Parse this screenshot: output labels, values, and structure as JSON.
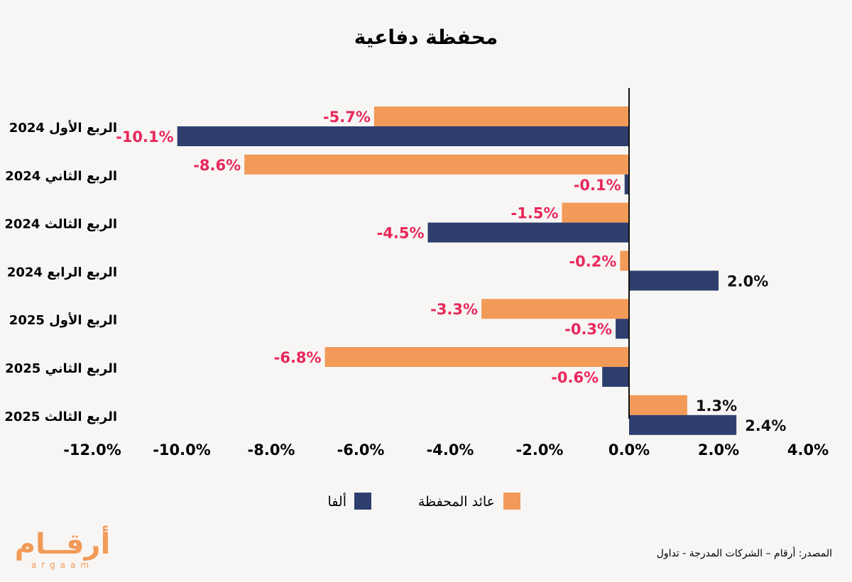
{
  "chart_data": {
    "type": "bar",
    "orientation": "horizontal",
    "title": "محفظة دفاعية",
    "categories": [
      "الربع الأول 2024",
      "الربع الثاني 2024",
      "الربع الثالث 2024",
      "الربع الرابع 2024",
      "الربع الأول 2025",
      "الربع الثاني 2025",
      "الربع الثالث 2025"
    ],
    "series": [
      {
        "name": "عائد المحفظة",
        "color": "#f29a58",
        "values": [
          -5.7,
          -8.6,
          -1.5,
          -0.2,
          -3.3,
          -6.8,
          1.3
        ],
        "labels": [
          "-5.7%",
          "-8.6%",
          "-1.5%",
          "-0.2%",
          "-3.3%",
          "-6.8%",
          "1.3%"
        ]
      },
      {
        "name": "ألفا",
        "color": "#2e3f6e",
        "values": [
          -10.1,
          -0.1,
          -4.5,
          2.0,
          -0.3,
          -0.6,
          2.4
        ],
        "labels": [
          "-10.1%",
          "-0.1%",
          "-4.5%",
          "2.0%",
          "-0.3%",
          "-0.6%",
          "2.4%"
        ]
      }
    ],
    "xlim": [
      -12,
      4
    ],
    "xticks": [
      -12,
      -10,
      -8,
      -6,
      -4,
      -2,
      0,
      2,
      4
    ],
    "xtick_labels": [
      "-12.0%",
      "-10.0%",
      "-8.0%",
      "-6.0%",
      "-4.0%",
      "-2.0%",
      "0.0%",
      "2.0%",
      "4.0%"
    ],
    "grid": false,
    "legend_position": "bottom-center",
    "negative_label_color": "#e8285a",
    "positive_label_color": "#111111"
  },
  "source": "المصدر: أرقام – الشركات المدرجة - تداول",
  "logo": {
    "text": "أرقــام",
    "subtext": "argaam",
    "color": "#f29a58"
  }
}
